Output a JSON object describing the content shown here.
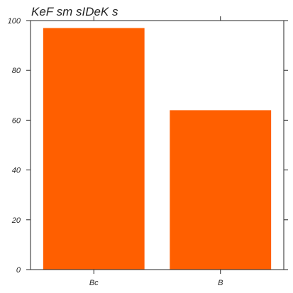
{
  "chart_data": {
    "type": "bar",
    "title": "KeF sm sIDeK s",
    "xlabel": "",
    "ylabel": "",
    "categories": [
      "Bc",
      "B"
    ],
    "values": [
      97,
      64
    ],
    "ylim": [
      0,
      100
    ],
    "yticks": [
      0,
      20,
      40,
      60,
      80,
      100
    ],
    "bar_color": "#ff5f00",
    "grid": false,
    "legend": "none"
  }
}
